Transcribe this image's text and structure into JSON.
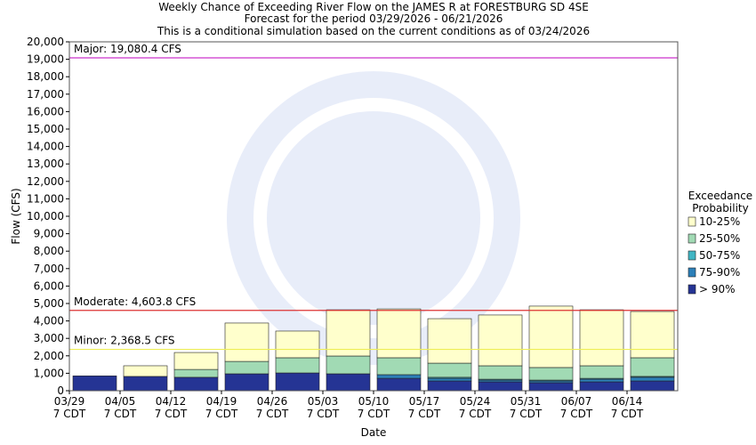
{
  "chart_data": {
    "type": "stacked_bar",
    "title": [
      "Weekly Chance of Exceeding River Flow on the JAMES R at FORESTBURG SD 4SE",
      "Forecast for the period 03/29/2026 - 06/21/2026",
      "This is a conditional simulation based on the current conditions as of 03/24/2026"
    ],
    "x_label": "Date",
    "y_label": "Flow (CFS)",
    "categories": [
      [
        "03/29",
        "7 CDT"
      ],
      [
        "04/05",
        "7 CDT"
      ],
      [
        "04/12",
        "7 CDT"
      ],
      [
        "04/19",
        "7 CDT"
      ],
      [
        "04/26",
        "7 CDT"
      ],
      [
        "05/03",
        "7 CDT"
      ],
      [
        "05/10",
        "7 CDT"
      ],
      [
        "05/17",
        "7 CDT"
      ],
      [
        "05/24",
        "7 CDT"
      ],
      [
        "05/31",
        "7 CDT"
      ],
      [
        "06/07",
        "7 CDT"
      ],
      [
        "06/14",
        "7 CDT"
      ]
    ],
    "series": [
      {
        "name": "> 90%",
        "color": "#253494",
        "values": [
          850,
          820,
          770,
          970,
          1020,
          970,
          710,
          560,
          510,
          460,
          510,
          560
        ]
      },
      {
        "name": "75-90%",
        "color": "#2c7fb8",
        "values": [
          0,
          0,
          0,
          0,
          0,
          0,
          210,
          150,
          100,
          100,
          150,
          210
        ]
      },
      {
        "name": "50-75%",
        "color": "#41b6c4",
        "values": [
          0,
          0,
          0,
          0,
          0,
          0,
          0,
          60,
          50,
          50,
          50,
          50
        ]
      },
      {
        "name": "25-50%",
        "color": "#a1dab4",
        "values": [
          0,
          0,
          450,
          710,
          870,
          1020,
          970,
          810,
          770,
          720,
          720,
          1070
        ]
      },
      {
        "name": "10-25%",
        "color": "#ffffcc",
        "values": [
          0,
          610,
          970,
          2200,
          1530,
          2650,
          2800,
          2550,
          2910,
          3520,
          3210,
          2650
        ]
      }
    ],
    "legend_title": [
      "Exceedance",
      "Probability"
    ],
    "thresholds": [
      {
        "label": "Major: 19,080.4 CFS",
        "value": 19080.4,
        "color": "#cc33cc"
      },
      {
        "label": "Moderate: 4,603.8 CFS",
        "value": 4603.8,
        "color": "#dd3333"
      },
      {
        "label": "Minor: 2,368.5 CFS",
        "value": 2368.5,
        "color": "#eeee55"
      }
    ],
    "ylim": [
      0,
      20000
    ],
    "yticks": [
      0,
      {
        "value": 1000,
        "label": "1,000"
      },
      {
        "value": 2000,
        "label": "2,000"
      },
      {
        "value": 3000,
        "label": "3,000"
      },
      {
        "value": 4000,
        "label": "4,000"
      },
      {
        "value": 5000,
        "label": "5,000"
      },
      {
        "value": 6000,
        "label": "6,000"
      },
      {
        "value": 7000,
        "label": "7,000"
      },
      {
        "value": 8000,
        "label": "8,000"
      },
      {
        "value": 9000,
        "label": "9,000"
      },
      {
        "value": 10000,
        "label": "10,000"
      },
      {
        "value": 11000,
        "label": "11,000"
      },
      {
        "value": 12000,
        "label": "12,000"
      },
      {
        "value": 13000,
        "label": "13,000"
      },
      {
        "value": 14000,
        "label": "14,000"
      },
      {
        "value": 15000,
        "label": "15,000"
      },
      {
        "value": 16000,
        "label": "16,000"
      },
      {
        "value": 17000,
        "label": "17,000"
      },
      {
        "value": 18000,
        "label": "18,000"
      },
      {
        "value": 19000,
        "label": "19,000"
      },
      {
        "value": 20000,
        "label": "20,000"
      }
    ]
  }
}
